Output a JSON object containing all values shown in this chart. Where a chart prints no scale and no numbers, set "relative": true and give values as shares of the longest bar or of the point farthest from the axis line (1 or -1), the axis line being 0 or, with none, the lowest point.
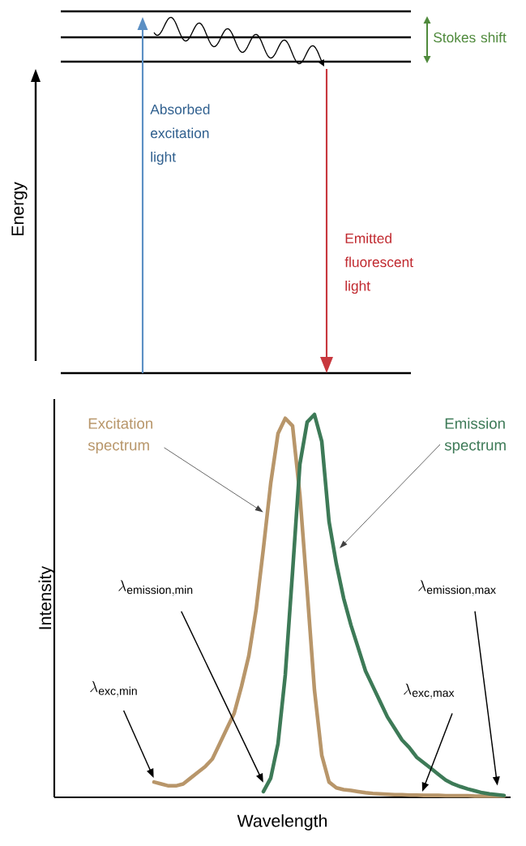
{
  "chart_data": [
    {
      "type": "other",
      "ylabel": "Energy",
      "annotations": [
        "Stokes shift",
        "Absorbed excitation light",
        "Emitted fluorescent light"
      ]
    },
    {
      "type": "line",
      "xlabel": "Wavelength",
      "ylabel": "Intensity",
      "relative": true,
      "categories": [
        null,
        null,
        null,
        null,
        null,
        null,
        null,
        null,
        null,
        null,
        null,
        null,
        null,
        null,
        null,
        null,
        null,
        null,
        null,
        null,
        null,
        null,
        null,
        null,
        null,
        null,
        null,
        null,
        null,
        null,
        null,
        null,
        null,
        null,
        null,
        null,
        null,
        null,
        null,
        null,
        null,
        null,
        null,
        null,
        null,
        null,
        null,
        null,
        null
      ],
      "series": [
        {
          "name": "Excitation spectrum",
          "color": "#b8966a",
          "values": [
            0.04,
            0.035,
            0.03,
            0.03,
            0.035,
            0.05,
            0.065,
            0.08,
            0.1,
            0.14,
            0.18,
            0.22,
            0.29,
            0.37,
            0.49,
            0.65,
            0.82,
            0.95,
            0.99,
            0.97,
            0.79,
            0.54,
            0.28,
            0.11,
            0.04,
            0.025,
            0.02,
            0.018,
            0.015,
            0.012,
            0.01,
            0.009,
            0.008,
            0.007,
            0.007,
            0.006,
            0.006,
            0.005,
            0.005,
            0.005,
            0.004,
            0.004,
            0.004,
            0.004,
            0.003,
            0.003,
            0.003,
            0.003,
            0.003
          ]
        },
        {
          "name": "Emission spectrum",
          "color": "#3d7a57",
          "values": [
            null,
            null,
            null,
            null,
            null,
            null,
            null,
            null,
            null,
            null,
            null,
            null,
            null,
            null,
            null,
            0.015,
            0.05,
            0.14,
            0.32,
            0.59,
            0.87,
            0.98,
            1.0,
            0.93,
            0.72,
            0.61,
            0.52,
            0.45,
            0.39,
            0.33,
            0.29,
            0.25,
            0.21,
            0.18,
            0.15,
            0.13,
            0.105,
            0.09,
            0.075,
            0.06,
            0.045,
            0.035,
            0.028,
            0.022,
            0.017,
            0.012,
            0.009,
            0.007,
            0.005
          ]
        }
      ],
      "annotations": [
        "\\lambda_{\\mathrm{emission,min}}",
        "\\lambda_{\\mathrm{emission,max}}",
        "\\lambda_{\\mathrm{exc,min}}",
        "\\lambda_{\\mathrm{exc,max}}"
      ]
    }
  ]
}
